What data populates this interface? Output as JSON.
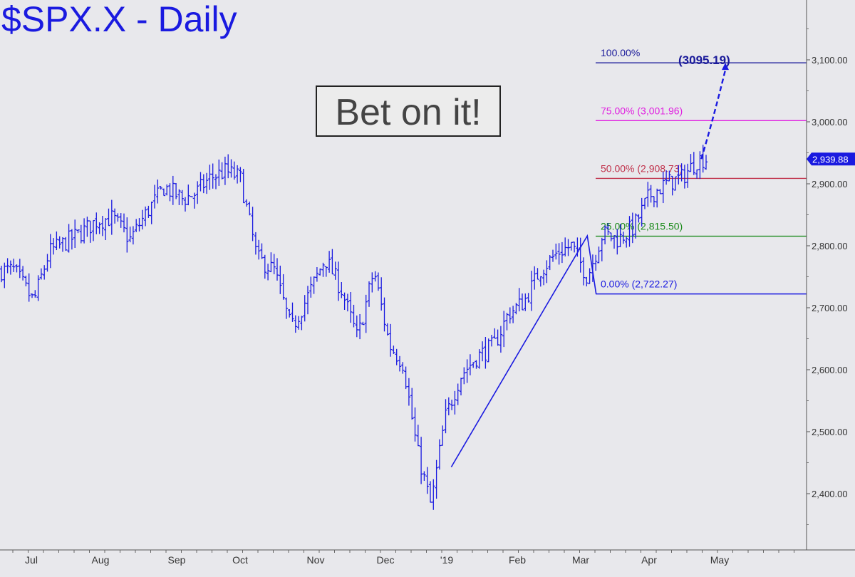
{
  "title": "$SPX.X - Daily",
  "callout": "Bet on it!",
  "colors": {
    "background": "#e8e8ec",
    "price": "#1a1ae0",
    "fib100": "#1a1a9a",
    "fib75": "#e020e0",
    "fib50": "#c0304a",
    "fib25": "#1a8a1a",
    "fib0": "#1a1ae0"
  },
  "chart_data": {
    "type": "line",
    "title": "$SPX.X - Daily",
    "x_tick_labels": [
      "Jul",
      "Aug",
      "Sep",
      "Oct",
      "Nov",
      "Dec",
      "'19",
      "Feb",
      "Mar",
      "Apr",
      "May"
    ],
    "y_tick_labels": [
      "3,100.00",
      "3,000.00",
      "2,900.00",
      "2,800.00",
      "2,700.00",
      "2,600.00",
      "2,500.00",
      "2,400.00"
    ],
    "y_ticks": [
      3100,
      3000,
      2900,
      2800,
      2700,
      2600,
      2500,
      2400
    ],
    "ylim": [
      2330,
      3200
    ],
    "last_price_label": "2,939.88",
    "last_price": 2939.88,
    "series": [
      {
        "x": [
          "2018-06-25",
          "2018-07-02",
          "2018-07-09",
          "2018-07-16",
          "2018-07-23",
          "2018-07-30",
          "2018-08-06",
          "2018-08-13",
          "2018-08-20",
          "2018-08-27",
          "2018-09-04",
          "2018-09-10",
          "2018-09-17",
          "2018-09-24",
          "2018-10-01",
          "2018-10-08",
          "2018-10-15",
          "2018-10-22",
          "2018-10-29",
          "2018-11-05",
          "2018-11-12",
          "2018-11-19",
          "2018-11-26",
          "2018-12-03",
          "2018-12-10",
          "2018-12-17",
          "2018-12-24",
          "2018-12-31",
          "2019-01-07",
          "2019-01-14",
          "2019-01-22",
          "2019-01-28",
          "2019-02-04",
          "2019-02-11",
          "2019-02-19",
          "2019-02-25",
          "2019-03-04",
          "2019-03-11",
          "2019-03-18",
          "2019-03-25",
          "2019-04-01",
          "2019-04-08",
          "2019-04-15",
          "2019-04-22"
        ],
        "y": [
          2760,
          2710,
          2790,
          2805,
          2820,
          2840,
          2845,
          2810,
          2855,
          2895,
          2875,
          2885,
          2910,
          2920,
          2910,
          2780,
          2760,
          2665,
          2720,
          2780,
          2730,
          2650,
          2760,
          2640,
          2610,
          2470,
          2380,
          2520,
          2590,
          2620,
          2640,
          2690,
          2710,
          2760,
          2790,
          2800,
          2750,
          2820,
          2810,
          2830,
          2880,
          2900,
          2910,
          2940
        ]
      }
    ],
    "fib_levels": [
      {
        "label": "100.00%",
        "value": 3095.19
      },
      {
        "label": "75.00% (3,001.96)",
        "value": 3001.96
      },
      {
        "label": "50.00% (2,908.73)",
        "value": 2908.73
      },
      {
        "label": "25.00% (2,815.50)",
        "value": 2815.5
      },
      {
        "label": "0.00% (2,722.27)",
        "value": 2722.27
      }
    ],
    "target_label": "(3095.19)",
    "target": 3095.19,
    "abc_pattern": [
      {
        "x": "2019-01-03",
        "y": 2443
      },
      {
        "x": "2019-03-04",
        "y": 2816
      },
      {
        "x": "2019-03-08",
        "y": 2722.27
      }
    ]
  }
}
